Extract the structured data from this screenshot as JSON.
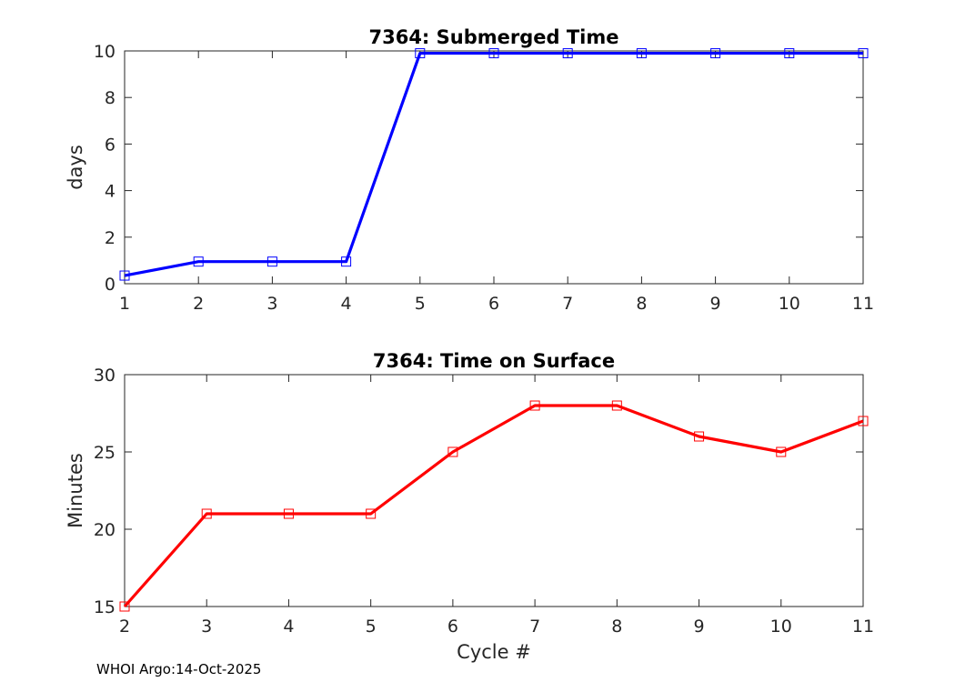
{
  "chart_data": [
    {
      "type": "line",
      "title": "7364: Submerged Time",
      "xlabel": "",
      "ylabel": "days",
      "xlim": [
        1,
        11
      ],
      "ylim": [
        0,
        10
      ],
      "xticks": [
        1,
        2,
        3,
        4,
        5,
        6,
        7,
        8,
        9,
        10,
        11
      ],
      "yticks": [
        0,
        2,
        4,
        6,
        8,
        10
      ],
      "grid": true,
      "series": [
        {
          "color": "#0000ff",
          "marker": "square",
          "x": [
            1,
            2,
            3,
            4,
            5,
            6,
            7,
            8,
            9,
            10,
            11
          ],
          "y": [
            0.35,
            0.95,
            0.95,
            0.95,
            9.9,
            9.9,
            9.9,
            9.9,
            9.9,
            9.9,
            9.9
          ]
        }
      ]
    },
    {
      "type": "line",
      "title": "7364: Time on Surface",
      "xlabel": "Cycle #",
      "ylabel": "Minutes",
      "xlim": [
        2,
        11
      ],
      "ylim": [
        15,
        30
      ],
      "xticks": [
        2,
        3,
        4,
        5,
        6,
        7,
        8,
        9,
        10,
        11
      ],
      "yticks": [
        15,
        20,
        25,
        30
      ],
      "grid": true,
      "series": [
        {
          "color": "#ff0000",
          "marker": "square",
          "x": [
            2,
            3,
            4,
            5,
            6,
            7,
            8,
            9,
            10,
            11
          ],
          "y": [
            15,
            21,
            21,
            21,
            25,
            28,
            28,
            26,
            25,
            27
          ]
        }
      ]
    }
  ],
  "footer": "WHOI Argo:14-Oct-2025"
}
